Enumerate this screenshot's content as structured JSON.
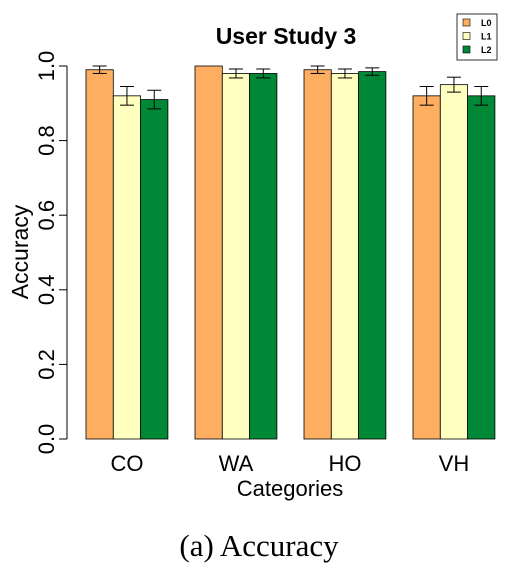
{
  "caption": "(a)  Accuracy",
  "chart_data": {
    "type": "bar",
    "title": "User Study 3",
    "xlabel": "Categories",
    "ylabel": "Accuracy",
    "ylim": [
      0,
      1
    ],
    "yticks": [
      "0.0",
      "0.2",
      "0.4",
      "0.6",
      "0.8",
      "1.0"
    ],
    "categories": [
      "CO",
      "WA",
      "HO",
      "VH"
    ],
    "legend_position": "top-right",
    "grid": false,
    "error_bars": true,
    "series": [
      {
        "name": "L0",
        "color": "#fdae61",
        "values": [
          0.99,
          1.0,
          0.99,
          0.92
        ],
        "errors": [
          0.01,
          0.0,
          0.01,
          0.025
        ]
      },
      {
        "name": "L1",
        "color": "#ffffbf",
        "values": [
          0.92,
          0.98,
          0.98,
          0.95
        ],
        "errors": [
          0.025,
          0.012,
          0.012,
          0.02
        ]
      },
      {
        "name": "L2",
        "color": "#008837",
        "values": [
          0.91,
          0.98,
          0.985,
          0.92
        ],
        "errors": [
          0.025,
          0.012,
          0.01,
          0.025
        ]
      }
    ]
  }
}
